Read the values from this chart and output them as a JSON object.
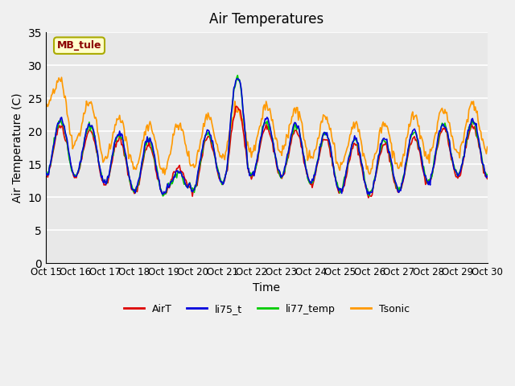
{
  "title": "Air Temperatures",
  "ylabel": "Air Temperature (C)",
  "xlabel": "Time",
  "ylim": [
    0,
    35
  ],
  "yticks": [
    0,
    5,
    10,
    15,
    20,
    25,
    30,
    35
  ],
  "annotation": "MB_tule",
  "bg_color": "#f0f0f0",
  "plot_bg_color": "#e8e8e8",
  "colors": {
    "AirT": "#dd0000",
    "li75_t": "#0000dd",
    "li77_temp": "#00cc00",
    "Tsonic": "#ff9900"
  },
  "xtick_labels": [
    "Oct 15",
    "Oct 16",
    "Oct 17",
    "Oct 18",
    "Oct 19",
    "Oct 20",
    "Oct 21",
    "Oct 22",
    "Oct 23",
    "Oct 24",
    "Oct 25",
    "Oct 26",
    "Oct 27",
    "Oct 28",
    "Oct 29",
    "Oct 30"
  ],
  "n_points": 480
}
